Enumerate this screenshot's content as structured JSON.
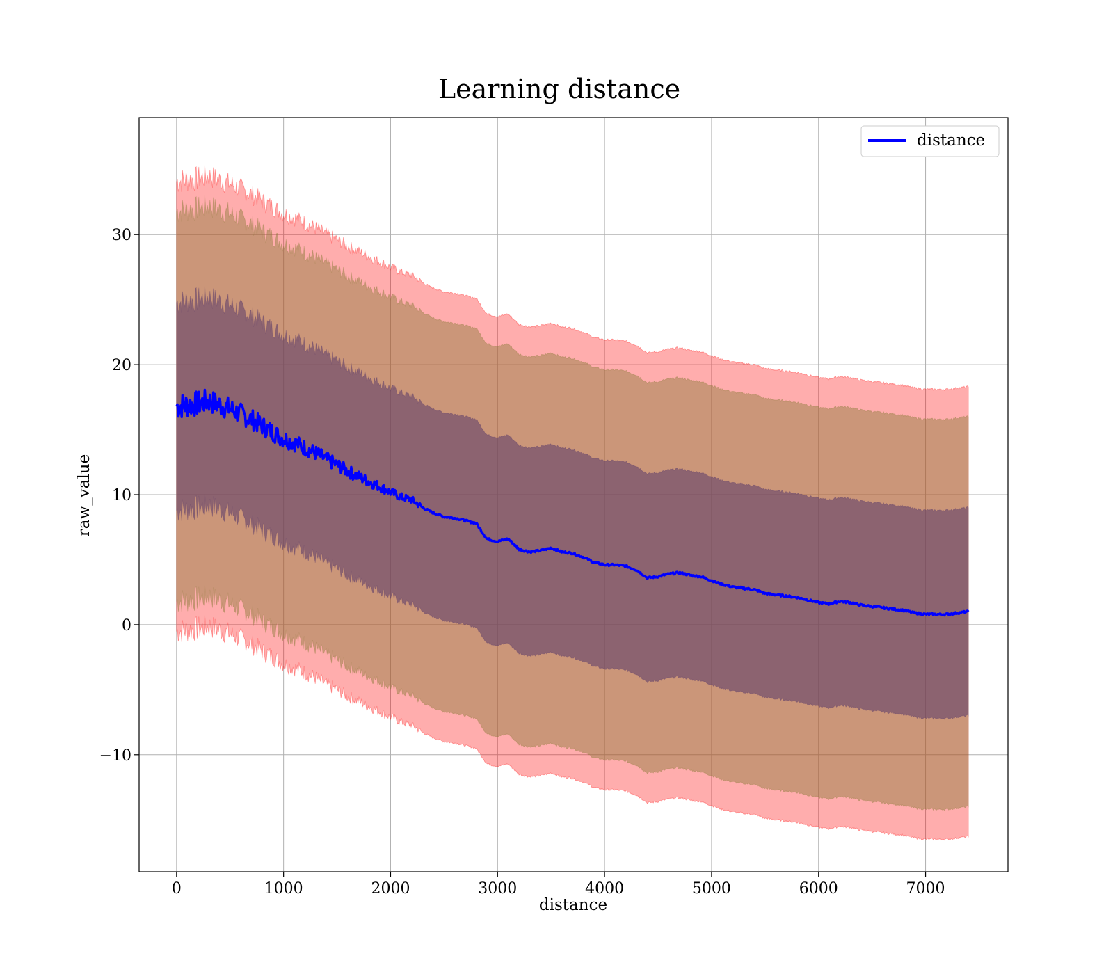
{
  "chart_data": {
    "type": "line",
    "title": "Learning distance",
    "xlabel": "distance",
    "ylabel": "raw_value",
    "xlim": [
      -350,
      7770
    ],
    "ylim": [
      -19,
      39
    ],
    "xticks": [
      0,
      1000,
      2000,
      3000,
      4000,
      5000,
      6000,
      7000
    ],
    "yticks": [
      -10,
      0,
      10,
      20,
      30
    ],
    "xtick_labels": [
      "0",
      "1000",
      "2000",
      "3000",
      "4000",
      "5000",
      "6000",
      "7000"
    ],
    "ytick_labels": [
      "−10",
      "0",
      "10",
      "20",
      "30"
    ],
    "grid": true,
    "legend": {
      "position": "top-right",
      "entries": [
        "distance"
      ]
    },
    "x": [
      0,
      100,
      200,
      300,
      400,
      500,
      600,
      700,
      800,
      900,
      1000,
      1100,
      1200,
      1300,
      1400,
      1500,
      1600,
      1700,
      1800,
      1900,
      2000,
      2100,
      2200,
      2300,
      2400,
      2500,
      2600,
      2700,
      2800,
      2900,
      3000,
      3100,
      3200,
      3300,
      3400,
      3500,
      3600,
      3700,
      3800,
      3900,
      4000,
      4100,
      4200,
      4300,
      4400,
      4500,
      4600,
      4700,
      4800,
      4900,
      5000,
      5100,
      5200,
      5300,
      5400,
      5500,
      5600,
      5700,
      5800,
      5900,
      6000,
      6100,
      6200,
      6300,
      6400,
      6500,
      6600,
      6700,
      6800,
      6900,
      7000,
      7100,
      7200,
      7300,
      7400
    ],
    "series": [
      {
        "name": "distance",
        "color": "#0000ff",
        "values": [
          16.8,
          16.9,
          17.0,
          17.2,
          16.9,
          16.6,
          16.2,
          15.8,
          15.3,
          14.8,
          14.3,
          14.0,
          13.6,
          13.2,
          12.7,
          12.3,
          11.8,
          11.4,
          11.0,
          10.6,
          10.2,
          9.8,
          9.6,
          9.0,
          8.6,
          8.3,
          8.2,
          8.0,
          7.8,
          6.6,
          6.4,
          6.6,
          5.8,
          5.6,
          5.7,
          5.9,
          5.6,
          5.5,
          5.2,
          4.8,
          4.6,
          4.6,
          4.5,
          4.2,
          3.6,
          3.7,
          3.9,
          4.0,
          3.8,
          3.7,
          3.4,
          3.1,
          2.9,
          2.8,
          2.7,
          2.4,
          2.3,
          2.2,
          2.1,
          1.9,
          1.7,
          1.6,
          1.8,
          1.7,
          1.5,
          1.4,
          1.3,
          1.2,
          1.1,
          0.9,
          0.8,
          0.8,
          0.8,
          0.9,
          1.0
        ]
      }
    ],
    "bands": [
      {
        "name": "outer band",
        "color": "#ff0000",
        "opacity": 0.32,
        "offset_upper": 17.3,
        "offset_lower": 17.3
      },
      {
        "name": "middle band",
        "color": "#8b7a3a",
        "opacity": 0.45,
        "offset_upper": 15.0,
        "offset_lower": 15.0
      },
      {
        "name": "inner band",
        "color": "#5a3a6a",
        "opacity": 0.55,
        "offset_upper": 8.0,
        "offset_lower": 8.0
      }
    ]
  }
}
